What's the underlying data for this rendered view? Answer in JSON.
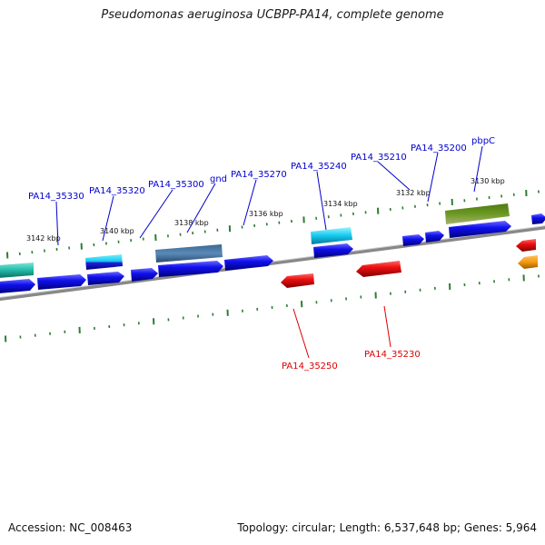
{
  "title": "Pseudomonas aeruginosa UCBPP-PA14, complete genome",
  "footer": {
    "accession": "Accession: NC_008463",
    "summary": "Topology: circular; Length: 6,537,648 bp; Genes: 5,964"
  },
  "colors": {
    "forward_label": "#0000cc",
    "reverse_label": "#dd0000",
    "tick": "#2e7d32",
    "backbone": "#777777"
  },
  "tick_labels": [
    "3142 kbp",
    "3140 kbp",
    "3138 kbp",
    "3136 kbp",
    "3134 kbp",
    "3132 kbp",
    "3130 kbp"
  ],
  "forward_gene_labels": [
    "PA14_35330",
    "PA14_35320",
    "PA14_35300",
    "gnd",
    "PA14_35270",
    "PA14_35240",
    "PA14_35210",
    "PA14_35200",
    "pbpC"
  ],
  "reverse_gene_labels": [
    "PA14_35250",
    "PA14_35230"
  ]
}
